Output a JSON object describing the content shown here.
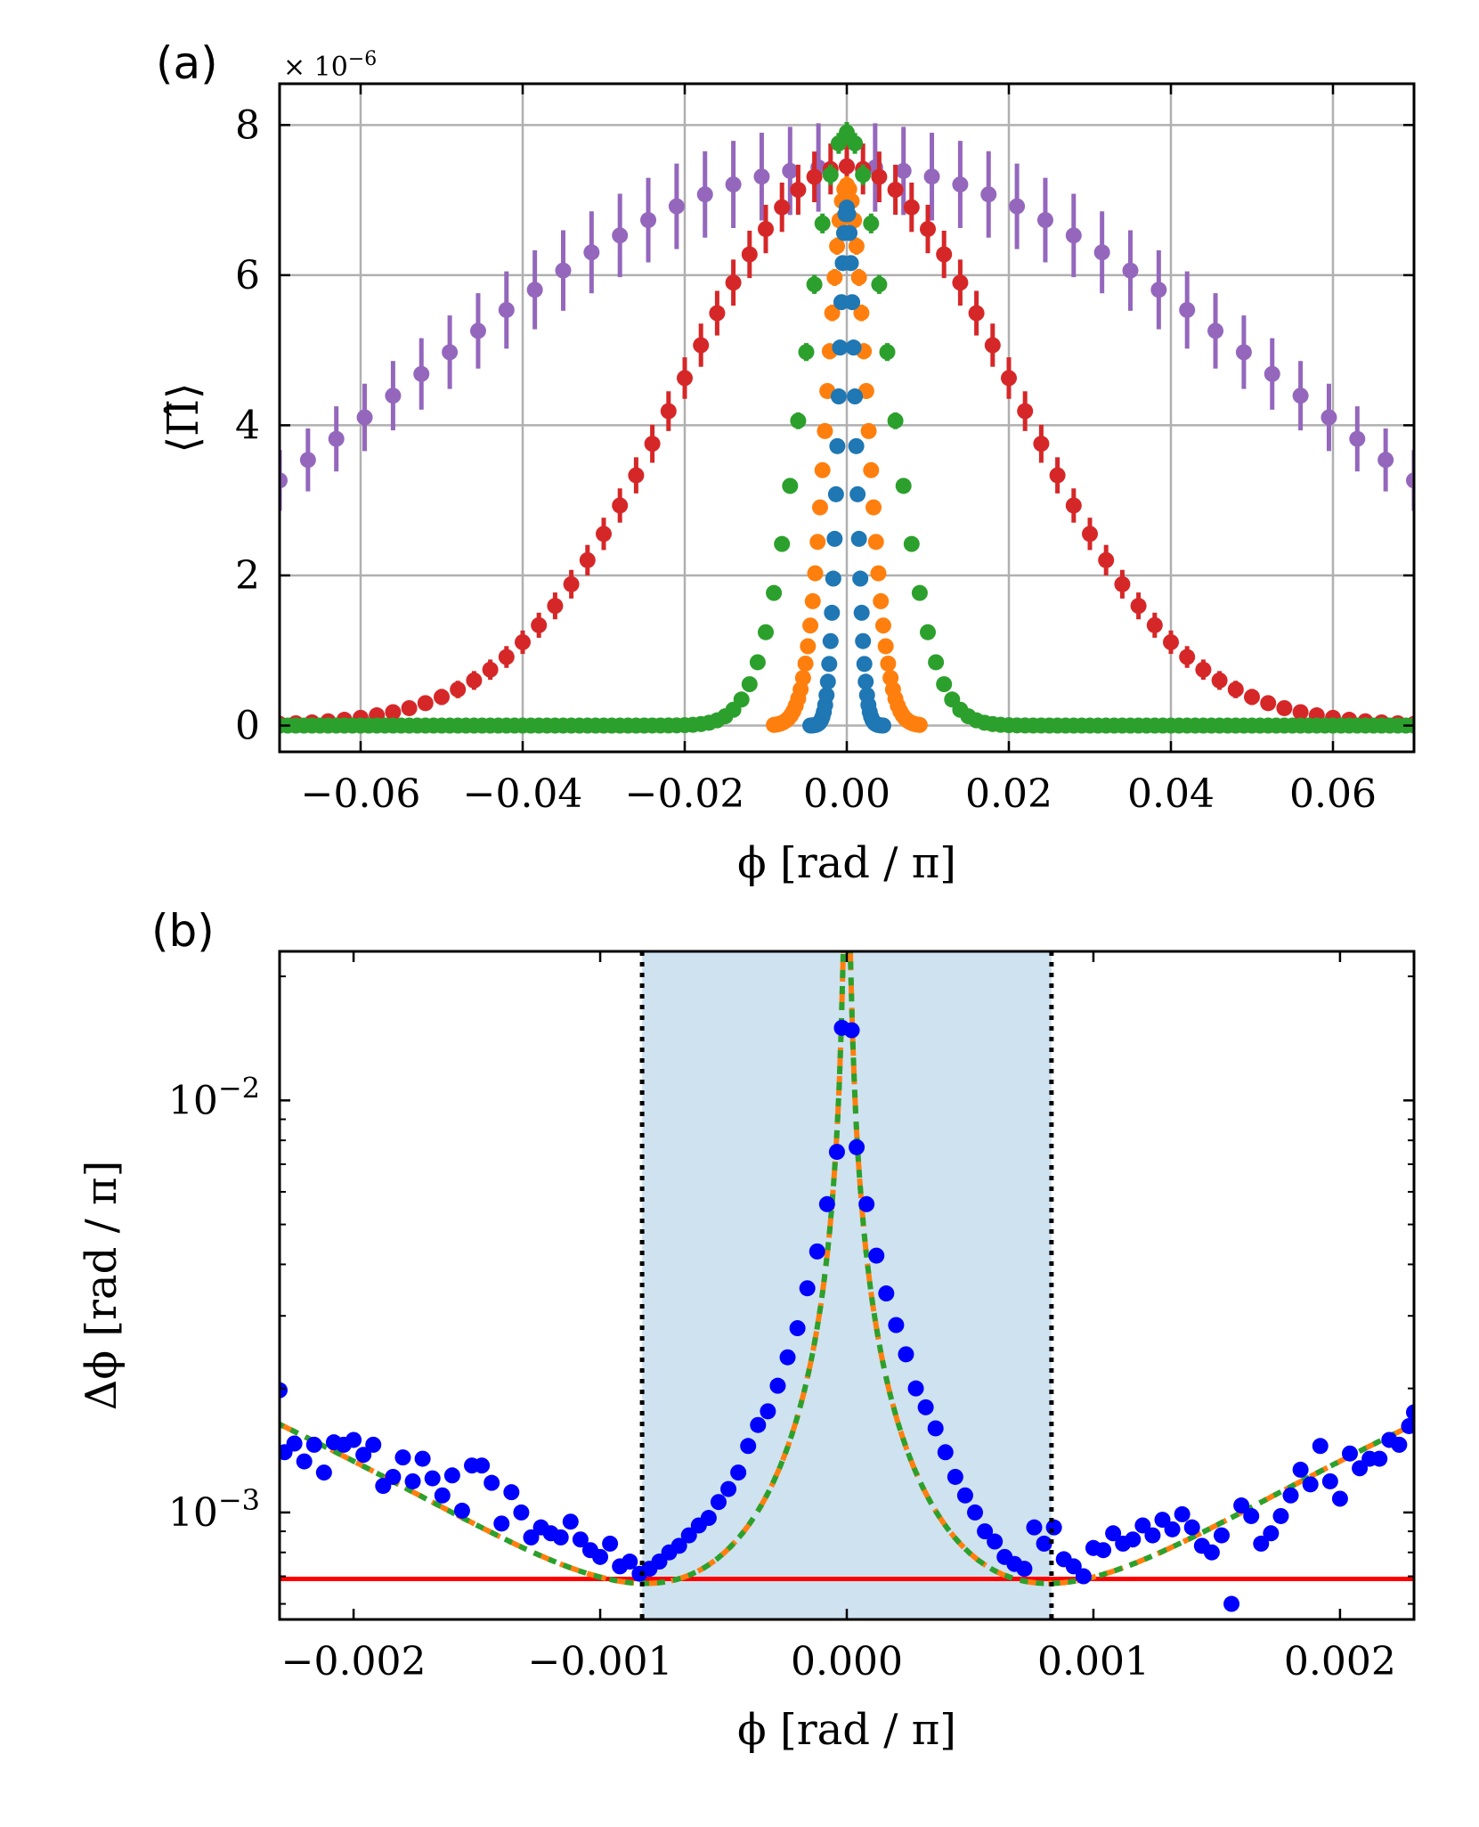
{
  "chart_data": [
    {
      "panel_label": "(a)",
      "type": "scatter",
      "xlabel": "ϕ [rad / π]",
      "ylabel": "⟨Π̂⟩",
      "multiplier_text": "× 10",
      "multiplier_exp": "−6",
      "xlim": [
        -0.07,
        0.07
      ],
      "ylim": [
        -0.35,
        8.55
      ],
      "grid": true,
      "x_ticks": [
        -0.06,
        -0.04,
        -0.02,
        0.0,
        0.02,
        0.04,
        0.06
      ],
      "x_tick_labels": [
        "−0.06",
        "−0.04",
        "−0.02",
        "0.00",
        "0.02",
        "0.04",
        "0.06"
      ],
      "y_ticks": [
        0,
        2,
        4,
        6,
        8
      ],
      "y_tick_labels": [
        "0",
        "2",
        "4",
        "6",
        "8"
      ],
      "series": [
        {
          "name": "purple",
          "color": "#9467bd",
          "peak": 7.45,
          "sigma": 0.0545,
          "xmin": -0.07,
          "xmax": 0.07,
          "n": 41,
          "err": 0.55
        },
        {
          "name": "red",
          "color": "#d62728",
          "peak": 7.45,
          "sigma": 0.0205,
          "xmin": -0.07,
          "xmax": 0.07,
          "n": 71,
          "err": 0.3
        },
        {
          "name": "green",
          "color": "#2ca02c",
          "peak": 7.9,
          "sigma": 0.0052,
          "xmin": -0.07,
          "xmax": 0.07,
          "n": 141,
          "err": 0.1
        },
        {
          "name": "orange",
          "color": "#ff7f0e",
          "peak": 7.2,
          "sigma": 0.00245,
          "xmin": -0.009,
          "xmax": 0.009,
          "n": 61,
          "err": 0.08
        },
        {
          "name": "blue",
          "color": "#1f77b4",
          "peak": 6.9,
          "sigma": 0.00105,
          "xmin": -0.0045,
          "xmax": 0.0045,
          "n": 55,
          "err": 0.05
        }
      ]
    },
    {
      "panel_label": "(b)",
      "type": "scatter",
      "xlabel": "ϕ [rad / π]",
      "ylabel": "Δϕ [rad / π]",
      "xlim": [
        -0.0023,
        0.0023
      ],
      "ylim": [
        0.00055,
        0.023
      ],
      "yscale": "log",
      "grid": false,
      "x_ticks": [
        -0.002,
        -0.001,
        0.0,
        0.001,
        0.002
      ],
      "x_tick_labels": [
        "−0.002",
        "−0.001",
        "0.000",
        "0.001",
        "0.002"
      ],
      "y_ticks": [
        0.001,
        0.01
      ],
      "y_tick_labels": [
        {
          "base": "10",
          "exp": "−3"
        },
        {
          "base": "10",
          "exp": "−2"
        }
      ],
      "shaded_region": [
        -0.00083,
        0.00083
      ],
      "shade_color": "#cfe2f0",
      "vlines": [
        -0.00083,
        0.00083
      ],
      "hline": 0.00069,
      "hline_color": "#ff0000",
      "points_color": "#0000ff",
      "model_colors": [
        "#ff7f0e",
        "#2ca02c"
      ],
      "points": [
        [
          -0.0023,
          0.00198
        ],
        [
          -0.00228,
          0.0014
        ],
        [
          -0.00224,
          0.00147
        ],
        [
          -0.0022,
          0.00133
        ],
        [
          -0.00216,
          0.00146
        ],
        [
          -0.00212,
          0.00125
        ],
        [
          -0.00208,
          0.00148
        ],
        [
          -0.00204,
          0.00146
        ],
        [
          -0.002,
          0.0015
        ],
        [
          -0.00196,
          0.00138
        ],
        [
          -0.00192,
          0.00146
        ],
        [
          -0.00188,
          0.00116
        ],
        [
          -0.00184,
          0.00122
        ],
        [
          -0.0018,
          0.00136
        ],
        [
          -0.00176,
          0.00119
        ],
        [
          -0.00172,
          0.00135
        ],
        [
          -0.00168,
          0.00121
        ],
        [
          -0.00164,
          0.0011
        ],
        [
          -0.0016,
          0.00123
        ],
        [
          -0.00156,
          0.00101
        ],
        [
          -0.00152,
          0.0013
        ],
        [
          -0.00148,
          0.0013
        ],
        [
          -0.00144,
          0.00118
        ],
        [
          -0.0014,
          0.00094
        ],
        [
          -0.00136,
          0.00112
        ],
        [
          -0.00132,
          0.001
        ],
        [
          -0.00128,
          0.00087
        ],
        [
          -0.00124,
          0.00092
        ],
        [
          -0.0012,
          0.00089
        ],
        [
          -0.00116,
          0.00087
        ],
        [
          -0.00112,
          0.00095
        ],
        [
          -0.00108,
          0.00086
        ],
        [
          -0.00104,
          0.00081
        ],
        [
          -0.001,
          0.00078
        ],
        [
          -0.00096,
          0.00084
        ],
        [
          -0.00092,
          0.00074
        ],
        [
          -0.00088,
          0.00076
        ],
        [
          -0.00084,
          0.00071
        ],
        [
          -0.0008,
          0.00073
        ],
        [
          -0.00076,
          0.00076
        ],
        [
          -0.00072,
          0.0008
        ],
        [
          -0.00068,
          0.00083
        ],
        [
          -0.00064,
          0.00088
        ],
        [
          -0.0006,
          0.00093
        ],
        [
          -0.00056,
          0.00097
        ],
        [
          -0.00052,
          0.00106
        ],
        [
          -0.00048,
          0.00114
        ],
        [
          -0.00044,
          0.00125
        ],
        [
          -0.0004,
          0.00145
        ],
        [
          -0.00036,
          0.00163
        ],
        [
          -0.00032,
          0.00176
        ],
        [
          -0.00028,
          0.00203
        ],
        [
          -0.00024,
          0.00238
        ],
        [
          -0.0002,
          0.0028
        ],
        [
          -0.00016,
          0.0035
        ],
        [
          -0.00012,
          0.0043
        ],
        [
          -8e-05,
          0.0056
        ],
        [
          -4e-05,
          0.0075
        ],
        [
          -2e-05,
          0.015
        ],
        [
          2e-05,
          0.0148
        ],
        [
          4e-05,
          0.0077
        ],
        [
          8e-05,
          0.0056
        ],
        [
          0.00012,
          0.0042
        ],
        [
          0.00016,
          0.0034
        ],
        [
          0.0002,
          0.00285
        ],
        [
          0.00024,
          0.00242
        ],
        [
          0.00028,
          0.002
        ],
        [
          0.00032,
          0.0018
        ],
        [
          0.00036,
          0.0016
        ],
        [
          0.0004,
          0.0014
        ],
        [
          0.00044,
          0.00122
        ],
        [
          0.00048,
          0.0011
        ],
        [
          0.00052,
          0.001
        ],
        [
          0.00056,
          0.0009
        ],
        [
          0.0006,
          0.00085
        ],
        [
          0.00064,
          0.00078
        ],
        [
          0.00068,
          0.00075
        ],
        [
          0.00072,
          0.00073
        ],
        [
          0.00076,
          0.00092
        ],
        [
          0.0008,
          0.00084
        ],
        [
          0.00084,
          0.00092
        ],
        [
          0.00088,
          0.00077
        ],
        [
          0.00092,
          0.00074
        ],
        [
          0.00096,
          0.0007
        ],
        [
          0.001,
          0.00082
        ],
        [
          0.00104,
          0.00081
        ],
        [
          0.00108,
          0.00089
        ],
        [
          0.00112,
          0.00084
        ],
        [
          0.00116,
          0.00086
        ],
        [
          0.0012,
          0.00093
        ],
        [
          0.00124,
          0.00088
        ],
        [
          0.00128,
          0.00096
        ],
        [
          0.00132,
          0.00091
        ],
        [
          0.00136,
          0.00099
        ],
        [
          0.0014,
          0.00092
        ],
        [
          0.00144,
          0.00083
        ],
        [
          0.00148,
          0.0008
        ],
        [
          0.00152,
          0.00088
        ],
        [
          0.00156,
          0.0006
        ],
        [
          0.0016,
          0.00104
        ],
        [
          0.00164,
          0.00098
        ],
        [
          0.00168,
          0.00084
        ],
        [
          0.00172,
          0.00089
        ],
        [
          0.00176,
          0.00098
        ],
        [
          0.0018,
          0.0011
        ],
        [
          0.00184,
          0.00127
        ],
        [
          0.00188,
          0.00117
        ],
        [
          0.00192,
          0.00145
        ],
        [
          0.00196,
          0.00119
        ],
        [
          0.002,
          0.00108
        ],
        [
          0.00204,
          0.00139
        ],
        [
          0.00208,
          0.00128
        ],
        [
          0.00212,
          0.00135
        ],
        [
          0.00216,
          0.00135
        ],
        [
          0.0022,
          0.0015
        ],
        [
          0.00224,
          0.00146
        ],
        [
          0.00228,
          0.00162
        ],
        [
          0.0023,
          0.00175
        ]
      ]
    }
  ]
}
